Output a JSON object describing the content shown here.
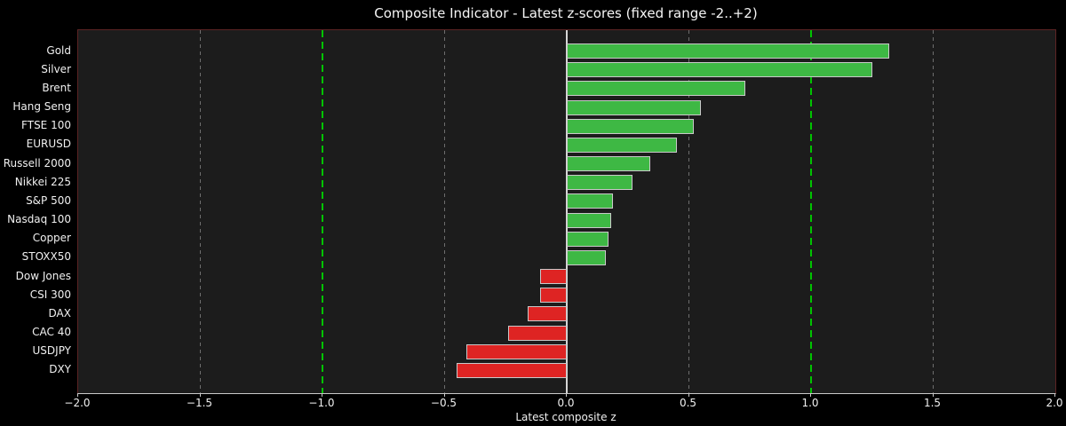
{
  "title": "Composite Indicator - Latest z-scores (fixed range -2..+2)",
  "xlabel": "Latest composite z",
  "colors": {
    "figure_background": "#000000",
    "axes_background": "#1c1c1c",
    "positive_bar": "#3eb844",
    "negative_bar": "#de2423",
    "bar_edge": "#c9c9c9",
    "threshold_line": "#00c400",
    "zero_line": "#d6d6d6",
    "gridline": "#6e6e6e",
    "spine": "#5c2424",
    "bottom_spine": "#c9c9c9",
    "text": "#f0f0f0"
  },
  "chart_data": {
    "type": "bar",
    "orientation": "horizontal",
    "title": "Composite Indicator - Latest z-scores (fixed range -2..+2)",
    "xlabel": "Latest composite z",
    "ylabel": "",
    "xlim": [
      -2.0,
      2.0
    ],
    "grid": true,
    "categories": [
      "Gold",
      "Silver",
      "Brent",
      "Hang Seng",
      "FTSE 100",
      "EURUSD",
      "Russell 2000",
      "Nikkei 225",
      "S&P 500",
      "Nasdaq 100",
      "Copper",
      "STOXX50",
      "Dow Jones",
      "CSI 300",
      "DAX",
      "CAC 40",
      "USDJPY",
      "DXY"
    ],
    "values": [
      1.32,
      1.25,
      0.73,
      0.55,
      0.52,
      0.45,
      0.34,
      0.27,
      0.19,
      0.18,
      0.17,
      0.16,
      -0.11,
      -0.11,
      -0.16,
      -0.24,
      -0.41,
      -0.45
    ],
    "xticks": [
      -2.0,
      -1.5,
      -1.0,
      -0.5,
      0.0,
      0.5,
      1.0,
      1.5,
      2.0
    ],
    "xtick_labels": [
      "−2.0",
      "−1.5",
      "−1.0",
      "−0.5",
      "0.0",
      "0.5",
      "1.0",
      "1.5",
      "2.0"
    ],
    "gridline_ticks": [
      -1.5,
      -0.5,
      0.5,
      1.5
    ],
    "threshold_lines": [
      -1.0,
      1.0
    ],
    "zero_line": 0.0
  }
}
